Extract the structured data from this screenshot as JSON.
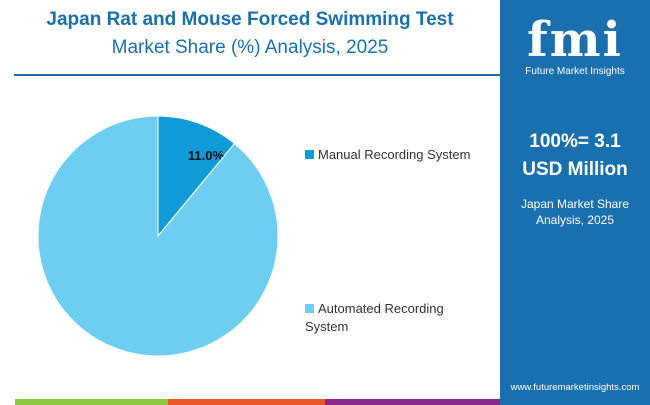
{
  "title_line1": "Japan Rat and Mouse Forced Swimming Test",
  "title_line2": "Market Share (%) Analysis, 2025",
  "panel": {
    "logo_text": "fmi",
    "logo_sub": "Future Market Insights",
    "total_line1": "100%= 3.1",
    "total_line2": "USD Million",
    "analysis": "Japan Market Share Analysis, 2025",
    "url": "www.futuremarketinsights.com"
  },
  "colors": {
    "brand": "#1a6faf",
    "bottom_bar": [
      "#8dc63f",
      "#e8582a",
      "#8b2a8c"
    ]
  },
  "chart_data": {
    "type": "pie",
    "slices": [
      {
        "label": "Manual Recording System",
        "value": 11.0,
        "data_label": "11.0%",
        "color": "#0f9bd7"
      },
      {
        "label": "Automated Recording System",
        "value": 89.0,
        "data_label": "",
        "color": "#6dcef1"
      }
    ],
    "legend_placement": "right"
  }
}
